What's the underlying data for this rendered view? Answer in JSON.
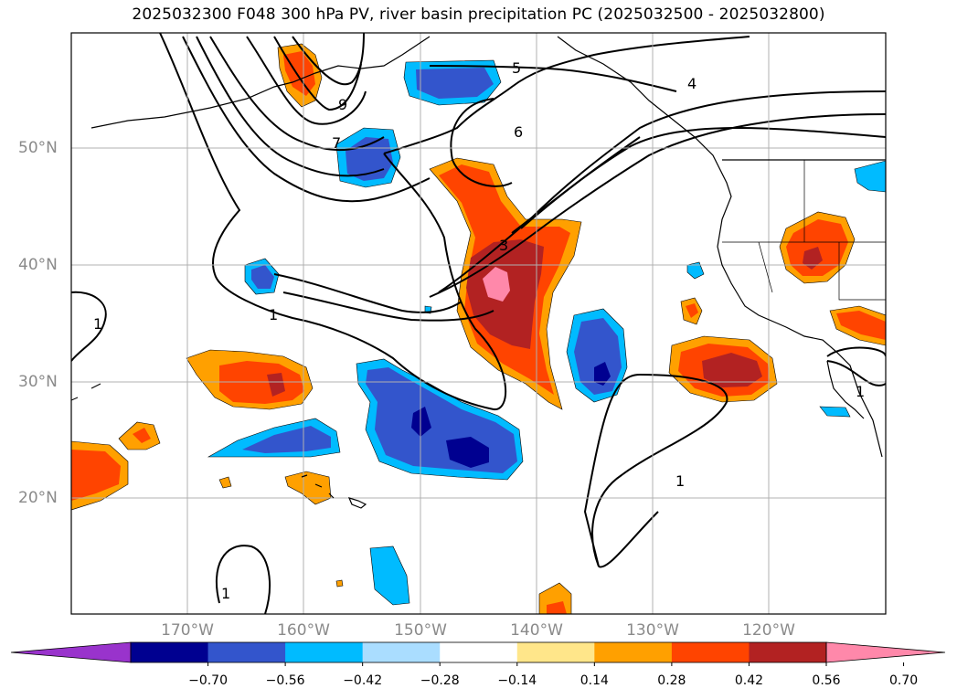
{
  "title": "2025032300 F048 300 hPa PV, river basin precipitation PC (2025032500 - 2025032800)",
  "map": {
    "lat_labels": [
      "50°N",
      "40°N",
      "30°N",
      "20°N"
    ],
    "lon_labels": [
      "170°W",
      "160°W",
      "150°W",
      "140°W",
      "130°W",
      "120°W"
    ],
    "pv_contour_labels": [
      "5",
      "4",
      "6",
      "7",
      "9",
      "3",
      "1"
    ]
  },
  "colorbar": {
    "tick_labels": [
      "−0.70",
      "−0.56",
      "−0.42",
      "−0.28",
      "−0.14",
      "0.14",
      "0.28",
      "0.42",
      "0.56",
      "0.70"
    ],
    "colors": [
      "#9933cc",
      "#000090",
      "#3355cc",
      "#00bbff",
      "#aaddff",
      "#ffffff",
      "#ffe68a",
      "#ffa000",
      "#ff4400",
      "#b22222",
      "#ff88aa"
    ]
  }
}
